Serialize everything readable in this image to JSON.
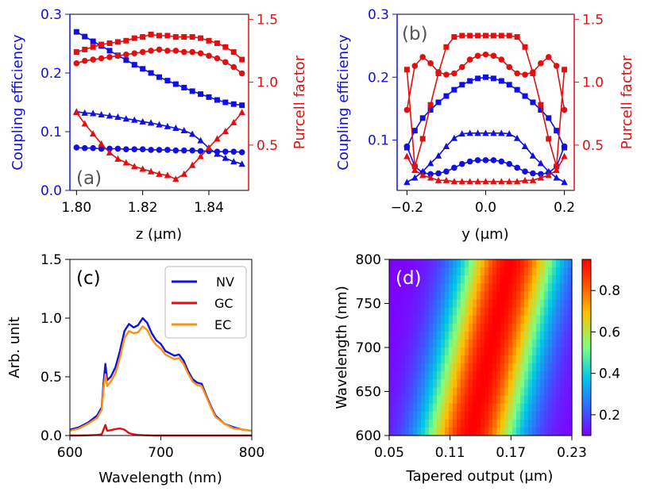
{
  "chart_data": [
    {
      "panel": "a",
      "type": "line",
      "panel_label": "(a)",
      "xlabel": "z (μm)",
      "ylabel_left": "Coupling efficiency",
      "ylabel_right": "Purcell factor",
      "xlim": [
        1.798,
        1.852
      ],
      "ylim_left": [
        0.0,
        0.3
      ],
      "ylim_right": [
        0.14,
        1.54
      ],
      "xticks": [
        1.8,
        1.82,
        1.84
      ],
      "xtick_labels": [
        "1.80",
        "1.82",
        "1.84"
      ],
      "yticks_left": [
        0.0,
        0.1,
        0.2,
        0.3
      ],
      "ytick_labels_left": [
        "0.0",
        "0.1",
        "0.2",
        "0.3"
      ],
      "yticks_right": [
        0.5,
        1.0,
        1.5
      ],
      "ytick_labels_right": [
        "0.5",
        "1.0",
        "1.5"
      ],
      "x": [
        1.8,
        1.8025,
        1.805,
        1.8075,
        1.81,
        1.8125,
        1.815,
        1.8175,
        1.82,
        1.8225,
        1.825,
        1.8275,
        1.83,
        1.8325,
        1.835,
        1.8375,
        1.84,
        1.8425,
        1.845,
        1.8475,
        1.85
      ],
      "series": [
        {
          "name": "CE square",
          "axis": "left",
          "color": "#1010e0",
          "marker": "square",
          "values": [
            0.27,
            0.262,
            0.254,
            0.246,
            0.238,
            0.23,
            0.222,
            0.214,
            0.207,
            0.2,
            0.193,
            0.187,
            0.181,
            0.175,
            0.169,
            0.164,
            0.159,
            0.154,
            0.15,
            0.147,
            0.145
          ]
        },
        {
          "name": "CE triangle",
          "axis": "left",
          "color": "#1010e0",
          "marker": "triangle",
          "values": [
            0.134,
            0.132,
            0.131,
            0.129,
            0.127,
            0.125,
            0.122,
            0.12,
            0.117,
            0.115,
            0.112,
            0.109,
            0.106,
            0.102,
            0.096,
            0.085,
            0.072,
            0.062,
            0.055,
            0.049,
            0.045
          ]
        },
        {
          "name": "CE circle",
          "axis": "left",
          "color": "#1010e0",
          "marker": "circle",
          "values": [
            0.073,
            0.072,
            0.072,
            0.071,
            0.071,
            0.071,
            0.07,
            0.07,
            0.07,
            0.069,
            0.069,
            0.069,
            0.068,
            0.068,
            0.068,
            0.067,
            0.067,
            0.066,
            0.066,
            0.066,
            0.065
          ]
        },
        {
          "name": "PF square",
          "axis": "right",
          "color": "#e01010",
          "marker": "square",
          "values": [
            1.24,
            1.26,
            1.28,
            1.3,
            1.31,
            1.32,
            1.33,
            1.35,
            1.36,
            1.38,
            1.37,
            1.37,
            1.36,
            1.36,
            1.36,
            1.35,
            1.33,
            1.31,
            1.28,
            1.24,
            1.18
          ]
        },
        {
          "name": "PF circle",
          "axis": "right",
          "color": "#e01010",
          "marker": "circle",
          "values": [
            1.15,
            1.17,
            1.18,
            1.19,
            1.2,
            1.21,
            1.22,
            1.23,
            1.24,
            1.25,
            1.26,
            1.25,
            1.25,
            1.24,
            1.24,
            1.23,
            1.21,
            1.19,
            1.16,
            1.12,
            1.07
          ]
        },
        {
          "name": "PF triangle",
          "axis": "right",
          "color": "#e01010",
          "marker": "triangle",
          "values": [
            0.76,
            0.67,
            0.59,
            0.51,
            0.44,
            0.39,
            0.36,
            0.33,
            0.31,
            0.29,
            0.27,
            0.26,
            0.23,
            0.27,
            0.34,
            0.41,
            0.48,
            0.55,
            0.61,
            0.68,
            0.76
          ]
        }
      ]
    },
    {
      "panel": "b",
      "type": "line",
      "panel_label": "(b)",
      "xlabel": "y (μm)",
      "ylabel_left": "Coupling efficiency",
      "ylabel_right": "Purcell factor",
      "xlim": [
        -0.225,
        0.225
      ],
      "ylim_left": [
        0.02,
        0.3
      ],
      "ylim_right": [
        0.14,
        1.54
      ],
      "xticks": [
        -0.2,
        0.0,
        0.2
      ],
      "xtick_labels": [
        "−0.2",
        "0.0",
        "0.2"
      ],
      "yticks_left": [
        0.1,
        0.2,
        0.3
      ],
      "ytick_labels_left": [
        "0.1",
        "0.2",
        "0.3"
      ],
      "yticks_right": [
        0.5,
        1.0,
        1.5
      ],
      "ytick_labels_right": [
        "0.5",
        "1.0",
        "1.5"
      ],
      "x": [
        -0.2,
        -0.18,
        -0.16,
        -0.14,
        -0.12,
        -0.1,
        -0.08,
        -0.06,
        -0.04,
        -0.02,
        0.0,
        0.02,
        0.04,
        0.06,
        0.08,
        0.1,
        0.12,
        0.14,
        0.16,
        0.18,
        0.2
      ],
      "series": [
        {
          "name": "CE square",
          "axis": "left",
          "color": "#1010e0",
          "marker": "square",
          "values": [
            0.088,
            0.115,
            0.135,
            0.148,
            0.16,
            0.17,
            0.18,
            0.188,
            0.194,
            0.198,
            0.2,
            0.198,
            0.194,
            0.188,
            0.18,
            0.17,
            0.16,
            0.148,
            0.135,
            0.115,
            0.088
          ]
        },
        {
          "name": "CE triangle",
          "axis": "left",
          "color": "#1010e0",
          "marker": "triangle",
          "values": [
            0.033,
            0.04,
            0.05,
            0.063,
            0.075,
            0.09,
            0.103,
            0.11,
            0.111,
            0.111,
            0.111,
            0.111,
            0.111,
            0.11,
            0.103,
            0.09,
            0.075,
            0.063,
            0.05,
            0.04,
            0.033
          ]
        },
        {
          "name": "CE circle",
          "axis": "left",
          "color": "#1010e0",
          "marker": "circle",
          "values": [
            0.09,
            0.058,
            0.048,
            0.046,
            0.047,
            0.05,
            0.056,
            0.062,
            0.066,
            0.068,
            0.068,
            0.068,
            0.066,
            0.062,
            0.056,
            0.05,
            0.047,
            0.046,
            0.048,
            0.058,
            0.09
          ]
        },
        {
          "name": "PF square",
          "axis": "right",
          "color": "#e01010",
          "marker": "square",
          "values": [
            1.1,
            0.33,
            0.55,
            0.82,
            1.07,
            1.28,
            1.36,
            1.37,
            1.37,
            1.37,
            1.37,
            1.37,
            1.37,
            1.37,
            1.36,
            1.28,
            1.07,
            0.82,
            0.55,
            0.33,
            1.1
          ]
        },
        {
          "name": "PF circle",
          "axis": "right",
          "color": "#e01010",
          "marker": "circle",
          "values": [
            0.78,
            1.13,
            1.2,
            1.15,
            1.08,
            1.06,
            1.07,
            1.12,
            1.18,
            1.21,
            1.22,
            1.21,
            1.18,
            1.12,
            1.07,
            1.06,
            1.08,
            1.15,
            1.2,
            1.13,
            0.78
          ]
        },
        {
          "name": "PF triangle",
          "axis": "right",
          "color": "#e01010",
          "marker": "triangle",
          "values": [
            0.41,
            0.3,
            0.26,
            0.24,
            0.22,
            0.22,
            0.21,
            0.21,
            0.21,
            0.21,
            0.21,
            0.21,
            0.21,
            0.21,
            0.21,
            0.22,
            0.22,
            0.24,
            0.26,
            0.3,
            0.41
          ]
        }
      ]
    },
    {
      "panel": "c",
      "type": "line",
      "panel_label": "(c)",
      "xlabel": "Wavelength (nm)",
      "ylabel": "Arb. unit",
      "xlim": [
        600,
        800
      ],
      "ylim": [
        0.0,
        1.5
      ],
      "xticks": [
        600,
        700,
        800
      ],
      "xtick_labels": [
        "600",
        "700",
        "800"
      ],
      "yticks": [
        0.0,
        0.5,
        1.0,
        1.5
      ],
      "ytick_labels": [
        "0.0",
        "0.5",
        "1.0",
        "1.5"
      ],
      "legend": "top-right",
      "x": [
        600,
        610,
        620,
        630,
        635,
        637,
        639,
        641,
        645,
        650,
        655,
        660,
        665,
        670,
        675,
        680,
        685,
        690,
        695,
        700,
        705,
        710,
        715,
        720,
        725,
        730,
        735,
        740,
        745,
        750,
        755,
        760,
        770,
        780,
        790,
        800
      ],
      "series": [
        {
          "name": "NV",
          "color": "#1010e0",
          "values": [
            0.05,
            0.07,
            0.11,
            0.17,
            0.24,
            0.45,
            0.61,
            0.47,
            0.5,
            0.58,
            0.72,
            0.89,
            0.95,
            0.92,
            0.94,
            1.0,
            0.96,
            0.87,
            0.81,
            0.78,
            0.72,
            0.7,
            0.68,
            0.69,
            0.64,
            0.55,
            0.48,
            0.45,
            0.44,
            0.34,
            0.25,
            0.17,
            0.1,
            0.07,
            0.05,
            0.04
          ]
        },
        {
          "name": "GC",
          "color": "#e01010",
          "values": [
            0.0,
            0.0,
            0.002,
            0.005,
            0.01,
            0.05,
            0.09,
            0.04,
            0.045,
            0.055,
            0.06,
            0.05,
            0.02,
            0.01,
            0.005,
            0.003,
            0.002,
            0.001,
            0.0,
            0.0,
            0.0,
            0.0,
            0.0,
            0.0,
            0.0,
            0.0,
            0.0,
            0.0,
            0.0,
            0.0,
            0.0,
            0.0,
            0.0,
            0.0,
            0.0,
            0.0
          ]
        },
        {
          "name": "EC",
          "color": "#ff9010",
          "values": [
            0.04,
            0.06,
            0.1,
            0.15,
            0.22,
            0.4,
            0.52,
            0.42,
            0.46,
            0.53,
            0.66,
            0.83,
            0.89,
            0.87,
            0.88,
            0.93,
            0.9,
            0.82,
            0.77,
            0.74,
            0.69,
            0.67,
            0.65,
            0.66,
            0.61,
            0.53,
            0.46,
            0.43,
            0.42,
            0.33,
            0.24,
            0.16,
            0.1,
            0.06,
            0.05,
            0.04
          ]
        }
      ]
    },
    {
      "panel": "d",
      "type": "heatmap",
      "panel_label": "(d)",
      "xlabel": "Tapered output (μm)",
      "ylabel": "Wavelength (nm)",
      "xlim": [
        0.05,
        0.23
      ],
      "ylim": [
        600,
        800
      ],
      "xticks": [
        0.05,
        0.11,
        0.17,
        0.23
      ],
      "xtick_labels": [
        "0.05",
        "0.11",
        "0.17",
        "0.23"
      ],
      "yticks": [
        600,
        650,
        700,
        750,
        800
      ],
      "ytick_labels": [
        "600",
        "650",
        "700",
        "750",
        "800"
      ],
      "colorbar_range": [
        0.1,
        0.95
      ],
      "colorbar_ticks": [
        0.2,
        0.4,
        0.6,
        0.8
      ],
      "colorbar_tick_labels": [
        "0.2",
        "0.4",
        "0.6",
        "0.8"
      ],
      "model": "peak position shifts linearly from 0.13 μm at 600 nm to 0.17 μm at 800 nm",
      "peak_width_um": 0.05
    }
  ]
}
